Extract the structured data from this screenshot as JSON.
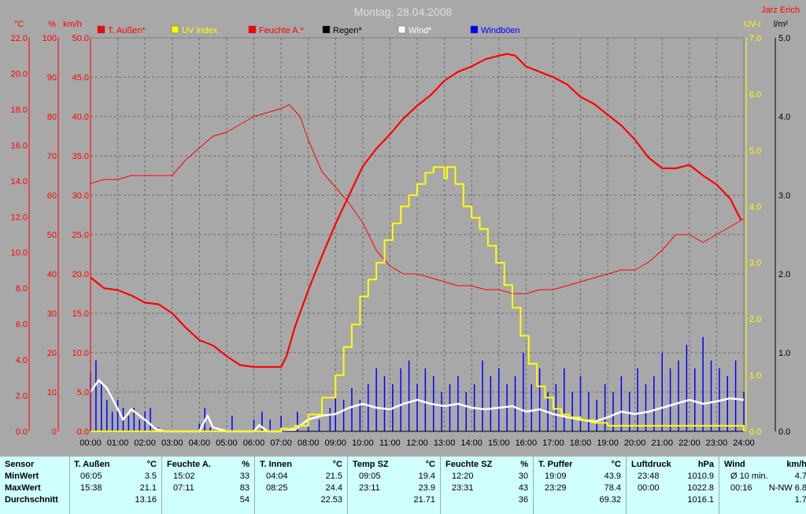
{
  "header": {
    "title": "Montag, 28.04.2008",
    "author": "Jarz Erich"
  },
  "axes": {
    "temp": {
      "unit": "°C",
      "min": 0,
      "max": 22,
      "ticks": [
        "0.0",
        "2.0",
        "4.0",
        "6.0",
        "8.0",
        "10.0",
        "12.0",
        "14.0",
        "16.0",
        "18.0",
        "20.0",
        "22.0"
      ]
    },
    "hum": {
      "unit": "%",
      "min": 0,
      "max": 100,
      "ticks": [
        "0",
        "10",
        "20",
        "30",
        "40",
        "50",
        "60",
        "70",
        "80",
        "90",
        "100"
      ]
    },
    "wind": {
      "unit": "km/h",
      "min": 0,
      "max": 50,
      "ticks": [
        "0.0",
        "5.0",
        "10.0",
        "15.0",
        "20.0",
        "25.0",
        "30.0",
        "35.0",
        "40.0",
        "45.0",
        "50.0"
      ]
    },
    "uv": {
      "unit": "UV-I",
      "min": 0,
      "max": 7,
      "ticks": [
        "0.0",
        "1.0",
        "2.0",
        "3.0",
        "4.0",
        "5.0",
        "6.0",
        "7.0"
      ]
    },
    "rain": {
      "unit": "l/m²",
      "min": 0,
      "max": 5,
      "ticks": [
        "0.0",
        "1.0",
        "2.0",
        "3.0",
        "4.0",
        "5.0"
      ]
    },
    "x_ticks": [
      "00:00",
      "01:00",
      "02:00",
      "03:00",
      "04:00",
      "05:00",
      "06:00",
      "07:00",
      "08:00",
      "09:00",
      "10:00",
      "11:00",
      "12:00",
      "13:00",
      "14:00",
      "15:00",
      "16:00",
      "17:00",
      "18:00",
      "19:00",
      "20:00",
      "21:00",
      "22:00",
      "23:00",
      "24:00"
    ]
  },
  "legend": [
    {
      "label": "T. Außen*",
      "color": "#ff0000"
    },
    {
      "label": "UV Index",
      "color": "#ffff00"
    },
    {
      "label": "Feuchte A.*",
      "color": "#ff0000"
    },
    {
      "label": "Regen*",
      "color": "#000000"
    },
    {
      "label": "Wind*",
      "color": "#ffffff"
    },
    {
      "label": "Windböen",
      "color": "#0000ff"
    }
  ],
  "chart_data": {
    "type": "line",
    "title": "Montag, 28.04.2008",
    "x_unit": "hour",
    "grid": true,
    "legend_position": "top",
    "series": [
      {
        "name": "T. Außen*",
        "axis": "temp",
        "color": "#ff0000",
        "width": 2.2,
        "x": [
          0,
          0.5,
          1,
          1.5,
          2,
          2.5,
          3,
          3.5,
          4,
          4.5,
          5,
          5.5,
          6,
          6.5,
          7,
          7.2,
          7.5,
          8,
          8.5,
          9,
          9.5,
          10,
          10.5,
          11,
          11.5,
          12,
          12.5,
          13,
          13.5,
          14,
          14.5,
          15,
          15.3,
          15.6,
          16,
          16.5,
          17,
          17.5,
          18,
          18.5,
          19,
          19.5,
          20,
          20.5,
          21,
          21.5,
          22,
          22.5,
          23,
          23.5,
          23.9
        ],
        "y": [
          8.6,
          8.0,
          7.9,
          7.6,
          7.2,
          7.1,
          6.6,
          5.8,
          5.1,
          4.8,
          4.2,
          3.7,
          3.6,
          3.6,
          3.6,
          4.2,
          5.8,
          7.9,
          9.8,
          11.6,
          13.2,
          14.8,
          15.8,
          16.6,
          17.5,
          18.2,
          18.8,
          19.6,
          20.1,
          20.4,
          20.8,
          21.0,
          21.1,
          21.0,
          20.4,
          20.1,
          19.8,
          19.4,
          18.7,
          18.3,
          17.7,
          17.1,
          16.3,
          15.3,
          14.7,
          14.7,
          14.9,
          14.3,
          13.8,
          13.0,
          11.8
        ]
      },
      {
        "name": "Feuchte A.*",
        "axis": "hum",
        "color": "#ff0000",
        "width": 1,
        "x": [
          0,
          0.5,
          1,
          1.5,
          2,
          2.5,
          3,
          3.5,
          4,
          4.5,
          5,
          5.5,
          6,
          6.5,
          7,
          7.3,
          7.7,
          8,
          8.5,
          9,
          9.5,
          10,
          10.5,
          11,
          11.5,
          12,
          12.5,
          13,
          13.5,
          14,
          14.5,
          15,
          15.5,
          16,
          16.5,
          17,
          17.5,
          18,
          18.5,
          19,
          19.5,
          20,
          20.5,
          21,
          21.5,
          22,
          22.5,
          23,
          23.5,
          24
        ],
        "y": [
          63,
          64,
          64,
          65,
          65,
          65,
          65,
          69,
          72,
          75,
          76,
          78,
          80,
          81,
          82,
          83,
          80,
          74,
          66,
          62,
          58,
          53,
          46,
          42,
          40,
          40,
          39,
          38,
          37,
          37,
          36,
          36,
          35,
          35,
          36,
          36,
          37,
          38,
          39,
          40,
          41,
          41,
          43,
          46,
          50,
          50,
          48,
          50,
          52,
          54
        ]
      },
      {
        "name": "UV Index",
        "axis": "uv",
        "color": "#ffff00",
        "width": 2,
        "step": true,
        "x": [
          0,
          7.0,
          7.5,
          8.0,
          8.5,
          9.0,
          9.3,
          9.6,
          9.9,
          10.2,
          10.5,
          10.8,
          11.1,
          11.4,
          11.7,
          12.0,
          12.3,
          12.6,
          12.9,
          13.0,
          13.1,
          13.4,
          13.7,
          14.0,
          14.3,
          14.6,
          14.9,
          15.2,
          15.5,
          15.8,
          16.1,
          16.4,
          16.7,
          17.0,
          17.3,
          17.6,
          18.0,
          18.5,
          19.0,
          24
        ],
        "y": [
          0,
          0.05,
          0.1,
          0.3,
          0.6,
          1.0,
          1.5,
          1.9,
          2.4,
          2.7,
          3.0,
          3.4,
          3.7,
          4.0,
          4.2,
          4.4,
          4.6,
          4.7,
          4.7,
          4.5,
          4.7,
          4.4,
          4.0,
          3.8,
          3.6,
          3.3,
          3.0,
          2.6,
          2.2,
          1.7,
          1.2,
          0.8,
          0.6,
          0.4,
          0.3,
          0.25,
          0.2,
          0.15,
          0.1,
          0
        ]
      },
      {
        "name": "Wind*",
        "axis": "wind",
        "color": "#ffffff",
        "width": 2.5,
        "x": [
          0,
          0.3,
          0.6,
          0.9,
          1.2,
          1.5,
          1.8,
          2.1,
          2.4,
          2.7,
          3.0,
          4.0,
          4.3,
          4.5,
          5.0,
          6.0,
          6.2,
          6.5,
          7.0,
          7.5,
          8.0,
          8.5,
          9.0,
          9.5,
          10.0,
          10.5,
          11.0,
          11.5,
          12.0,
          12.5,
          13.0,
          13.5,
          14.0,
          14.5,
          15.0,
          15.5,
          16.0,
          16.5,
          17.0,
          17.5,
          18.0,
          18.5,
          19.0,
          19.5,
          20.0,
          20.5,
          21.0,
          21.5,
          22.0,
          22.5,
          23.0,
          23.5,
          24
        ],
        "y": [
          5,
          6.5,
          5.5,
          3.5,
          1.5,
          2.8,
          2,
          1.2,
          0.3,
          0,
          0,
          0,
          2,
          0.5,
          0,
          0,
          0.8,
          0,
          0,
          0.2,
          1.5,
          2,
          2.2,
          3,
          3.5,
          3,
          2.8,
          3.5,
          4,
          3.5,
          3.2,
          3.5,
          3,
          2.8,
          3,
          3.2,
          2.5,
          2.8,
          2.2,
          1.8,
          1.5,
          1.2,
          1.8,
          2.5,
          2.2,
          2.5,
          3,
          3.5,
          4,
          3.5,
          3.8,
          4.2,
          4
        ]
      },
      {
        "name": "Windböen",
        "axis": "wind",
        "color": "#0000ff",
        "width": 1.5,
        "bars": true,
        "x": [
          0,
          0.2,
          0.4,
          0.6,
          0.8,
          1.0,
          1.2,
          1.4,
          1.6,
          1.8,
          2.0,
          2.2,
          2.5,
          4.0,
          4.2,
          4.4,
          5.2,
          6.0,
          6.3,
          6.6,
          7.0,
          7.3,
          7.6,
          8.0,
          8.4,
          8.8,
          9.0,
          9.3,
          9.6,
          9.9,
          10.2,
          10.5,
          10.8,
          11.1,
          11.4,
          11.7,
          12.0,
          12.3,
          12.6,
          12.9,
          13.2,
          13.5,
          13.8,
          14.1,
          14.4,
          14.7,
          15.0,
          15.3,
          15.6,
          15.9,
          16.2,
          16.5,
          16.8,
          17.1,
          17.4,
          17.7,
          18.0,
          18.3,
          18.6,
          18.9,
          19.2,
          19.5,
          19.8,
          20.1,
          20.4,
          20.7,
          21.0,
          21.3,
          21.6,
          21.9,
          22.2,
          22.5,
          22.8,
          23.1,
          23.4,
          23.7,
          24
        ],
        "y": [
          7.5,
          9,
          6,
          4,
          2.5,
          4,
          3,
          2,
          3,
          1.5,
          2.5,
          3,
          0.5,
          1,
          3,
          0.5,
          2,
          1.5,
          2.5,
          1.5,
          2,
          0.5,
          2.5,
          2,
          1.5,
          3,
          6,
          4,
          5.5,
          4,
          6,
          8,
          7,
          6,
          8,
          9,
          6,
          8,
          7,
          5,
          6,
          7,
          5,
          6,
          9,
          7,
          8,
          6,
          7,
          10,
          6,
          8,
          5,
          6,
          8,
          5,
          7,
          5,
          4,
          6,
          5,
          7,
          5,
          8,
          6,
          7,
          10,
          8,
          9,
          11,
          8,
          12,
          9,
          8,
          7,
          9,
          5
        ]
      },
      {
        "name": "Regen*",
        "axis": "rain",
        "color": "#000000",
        "width": 1,
        "x": [
          0,
          24
        ],
        "y": [
          0,
          0
        ]
      }
    ]
  },
  "table": {
    "sensor_col": [
      "Sensor",
      "MinWert",
      "MaxWert",
      "Durchschnitt"
    ],
    "groups": [
      {
        "name": "T. Außen",
        "unit": "°C",
        "min_time": "06:05",
        "min_val": "3.5",
        "max_time": "15:38",
        "max_val": "21.1",
        "avg": "13.16"
      },
      {
        "name": "Feuchte A.",
        "unit": "%",
        "min_time": "15:02",
        "min_val": "33",
        "max_time": "07:11",
        "max_val": "83",
        "avg": "54"
      },
      {
        "name": "T. Innen",
        "unit": "°C",
        "min_time": "04:04",
        "min_val": "21.5",
        "max_time": "08:25",
        "max_val": "24.4",
        "avg": "22.53"
      },
      {
        "name": "Temp SZ",
        "unit": "°C",
        "min_time": "09:05",
        "min_val": "19.4",
        "max_time": "23:11",
        "max_val": "23.9",
        "avg": "21.71"
      },
      {
        "name": "Feuchte SZ",
        "unit": "%",
        "min_time": "12:20",
        "min_val": "30",
        "max_time": "23:31",
        "max_val": "43",
        "avg": "36"
      },
      {
        "name": "T. Puffer",
        "unit": "°C",
        "min_time": "19:09",
        "min_val": "43.9",
        "max_time": "23:29",
        "max_val": "78.4",
        "avg": "69.32"
      },
      {
        "name": "Luftdruck",
        "unit": "hPa",
        "min_time": "23:48",
        "min_val": "1010.9",
        "max_time": "00:00",
        "max_val": "1022.8",
        "avg": "1016.1"
      },
      {
        "name": "Wind",
        "unit": "km/h",
        "min_time": "Ø 10 min.",
        "min_val": "4.7",
        "max_time": "00:16",
        "max_val": "N-NW 6.8",
        "avg": "1.7"
      }
    ]
  }
}
